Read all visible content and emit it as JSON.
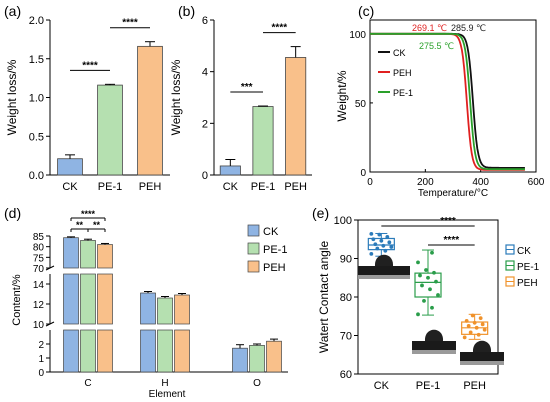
{
  "colors": {
    "CK": "#8fb4e3",
    "PE-1": "#b5e0b0",
    "PEH": "#f9c08a",
    "bar_edge": "#444444",
    "tga_CK": "#111111",
    "tga_PEH": "#e02020",
    "tga_PE1": "#2aa02a",
    "box_CK": "#2b7bba",
    "box_PE1": "#2a9d4a",
    "box_PEH": "#f0922b"
  },
  "chart_data": [
    {
      "panel": "(a)",
      "type": "bar",
      "ylabel": "Weight loss/%",
      "categories": [
        "CK",
        "PE-1",
        "PEH"
      ],
      "values": [
        0.21,
        1.16,
        1.66
      ],
      "errors": [
        0.05,
        0.01,
        0.06
      ],
      "ylim": [
        0,
        2.0
      ],
      "yticks": [
        "0.0",
        "0.5",
        "1.0",
        "1.5",
        "2.0"
      ],
      "significance": [
        {
          "from": "CK",
          "to": "PE-1",
          "label": "****"
        },
        {
          "from": "PE-1",
          "to": "PEH",
          "label": "****"
        }
      ]
    },
    {
      "panel": "(b)",
      "type": "bar",
      "ylabel": "Weight loss/%",
      "categories": [
        "CK",
        "PE-1",
        "PEH"
      ],
      "values": [
        0.35,
        2.65,
        4.55
      ],
      "errors": [
        0.25,
        0.02,
        0.42
      ],
      "ylim": [
        0,
        6
      ],
      "yticks": [
        "0",
        "2",
        "4",
        "6"
      ],
      "significance": [
        {
          "from": "CK",
          "to": "PE-1",
          "label": "***"
        },
        {
          "from": "PE-1",
          "to": "PEH",
          "label": "****"
        }
      ]
    },
    {
      "panel": "(c)",
      "type": "line",
      "xlabel": "Temperature/°C",
      "ylabel": "Weight/%",
      "xlim": [
        0,
        600
      ],
      "ylim": [
        0,
        110
      ],
      "xticks": [
        "0",
        "200",
        "400",
        "600"
      ],
      "yticks": [
        "0",
        "50",
        "100"
      ],
      "series": [
        {
          "name": "CK",
          "onset": 285.9,
          "midpoint": 372,
          "residue": 3.0
        },
        {
          "name": "PEH",
          "onset": 269.1,
          "midpoint": 350,
          "residue": 1.5
        },
        {
          "name": "PE-1",
          "onset": 275.5,
          "midpoint": 362,
          "residue": 2.0
        }
      ],
      "annotations": [
        {
          "text": "269.1 ℃",
          "series": "PEH"
        },
        {
          "text": "285.9 ℃",
          "series": "CK"
        },
        {
          "text": "275.5 ℃",
          "series": "PE-1"
        }
      ]
    },
    {
      "panel": "(d)",
      "type": "bar",
      "xlabel": "Element",
      "ylabel": "Content/%",
      "categories": [
        "C",
        "H",
        "O"
      ],
      "broken_axis_segments": [
        {
          "range": [
            70,
            85
          ],
          "ticks": [
            "70",
            "75",
            "80",
            "85"
          ]
        },
        {
          "range": [
            10,
            15
          ],
          "ticks": [
            "10",
            "12",
            "14"
          ]
        },
        {
          "range": [
            0,
            3
          ],
          "ticks": [
            "0",
            "1",
            "2"
          ]
        }
      ],
      "series": [
        {
          "name": "CK",
          "values": [
            84.2,
            13.1,
            1.7
          ],
          "errors": [
            0.4,
            0.15,
            0.25
          ]
        },
        {
          "name": "PE-1",
          "values": [
            82.9,
            12.6,
            1.9
          ],
          "errors": [
            0.6,
            0.15,
            0.1
          ]
        },
        {
          "name": "PEH",
          "values": [
            81.0,
            12.9,
            2.2
          ],
          "errors": [
            0.5,
            0.15,
            0.15
          ]
        }
      ],
      "significance": [
        {
          "from": "CK",
          "to": "PEH",
          "label": "****"
        },
        {
          "from": "CK",
          "to": "PE-1",
          "label": "**"
        },
        {
          "from": "PE-1",
          "to": "PEH",
          "label": "**"
        }
      ]
    },
    {
      "panel": "(e)",
      "type": "box",
      "ylabel": "Watert  Contact  angle",
      "categories": [
        "CK",
        "PE-1",
        "PEH"
      ],
      "ylim": [
        60,
        100
      ],
      "yticks": [
        "60",
        "70",
        "80",
        "90",
        "100"
      ],
      "boxes": [
        {
          "name": "CK",
          "min": 90.6,
          "q1": 92.3,
          "median": 93.5,
          "q3": 95.2,
          "max": 96.5,
          "points": [
            91.2,
            92.0,
            92.6,
            93.0,
            93.3,
            93.7,
            94.2,
            94.6,
            95.0,
            95.6,
            96.2,
            96.4
          ]
        },
        {
          "name": "PE-1",
          "min": 75.3,
          "q1": 80.0,
          "median": 83.8,
          "q3": 86.2,
          "max": 92.2,
          "points": [
            75.5,
            77.2,
            79.0,
            80.5,
            82.0,
            83.0,
            84.0,
            85.0,
            85.6,
            86.3,
            87.0,
            89.0,
            91.5
          ]
        },
        {
          "name": "PEH",
          "min": 69.0,
          "q1": 70.3,
          "median": 72.0,
          "q3": 73.5,
          "max": 75.5,
          "points": [
            69.5,
            70.2,
            70.8,
            71.5,
            72.0,
            72.5,
            72.9,
            73.3,
            73.8,
            74.5,
            75.2
          ]
        }
      ],
      "significance": [
        {
          "from": "CK",
          "to": "PEH",
          "label": "****"
        },
        {
          "from": "PE-1",
          "to": "PEH",
          "label": "****"
        }
      ]
    }
  ]
}
